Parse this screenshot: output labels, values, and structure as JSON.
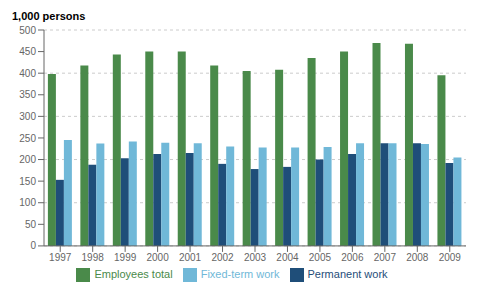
{
  "chart_data": {
    "type": "bar",
    "ylabel": "1,000 persons",
    "categories": [
      "1997",
      "1998",
      "1999",
      "2000",
      "2001",
      "2002",
      "2003",
      "2004",
      "2005",
      "2006",
      "2007",
      "2008",
      "2009"
    ],
    "series": [
      {
        "name": "Employees total",
        "color": "#4a8a4a",
        "values": [
          398,
          418,
          443,
          450,
          450,
          418,
          405,
          408,
          435,
          450,
          470,
          468,
          395
        ]
      },
      {
        "name": "Permanent work",
        "color": "#1f4e79",
        "values": [
          153,
          188,
          203,
          213,
          215,
          190,
          178,
          183,
          200,
          213,
          238,
          238,
          192
        ]
      },
      {
        "name": "Fixed-term work",
        "color": "#70b8d8",
        "values": [
          245,
          237,
          242,
          239,
          238,
          230,
          228,
          228,
          229,
          238,
          238,
          236,
          205
        ]
      }
    ],
    "ylim": [
      0,
      500
    ],
    "yticks": [
      0,
      50,
      100,
      150,
      200,
      250,
      300,
      350,
      400,
      450,
      500
    ],
    "grid": true,
    "legend": "bottom"
  }
}
